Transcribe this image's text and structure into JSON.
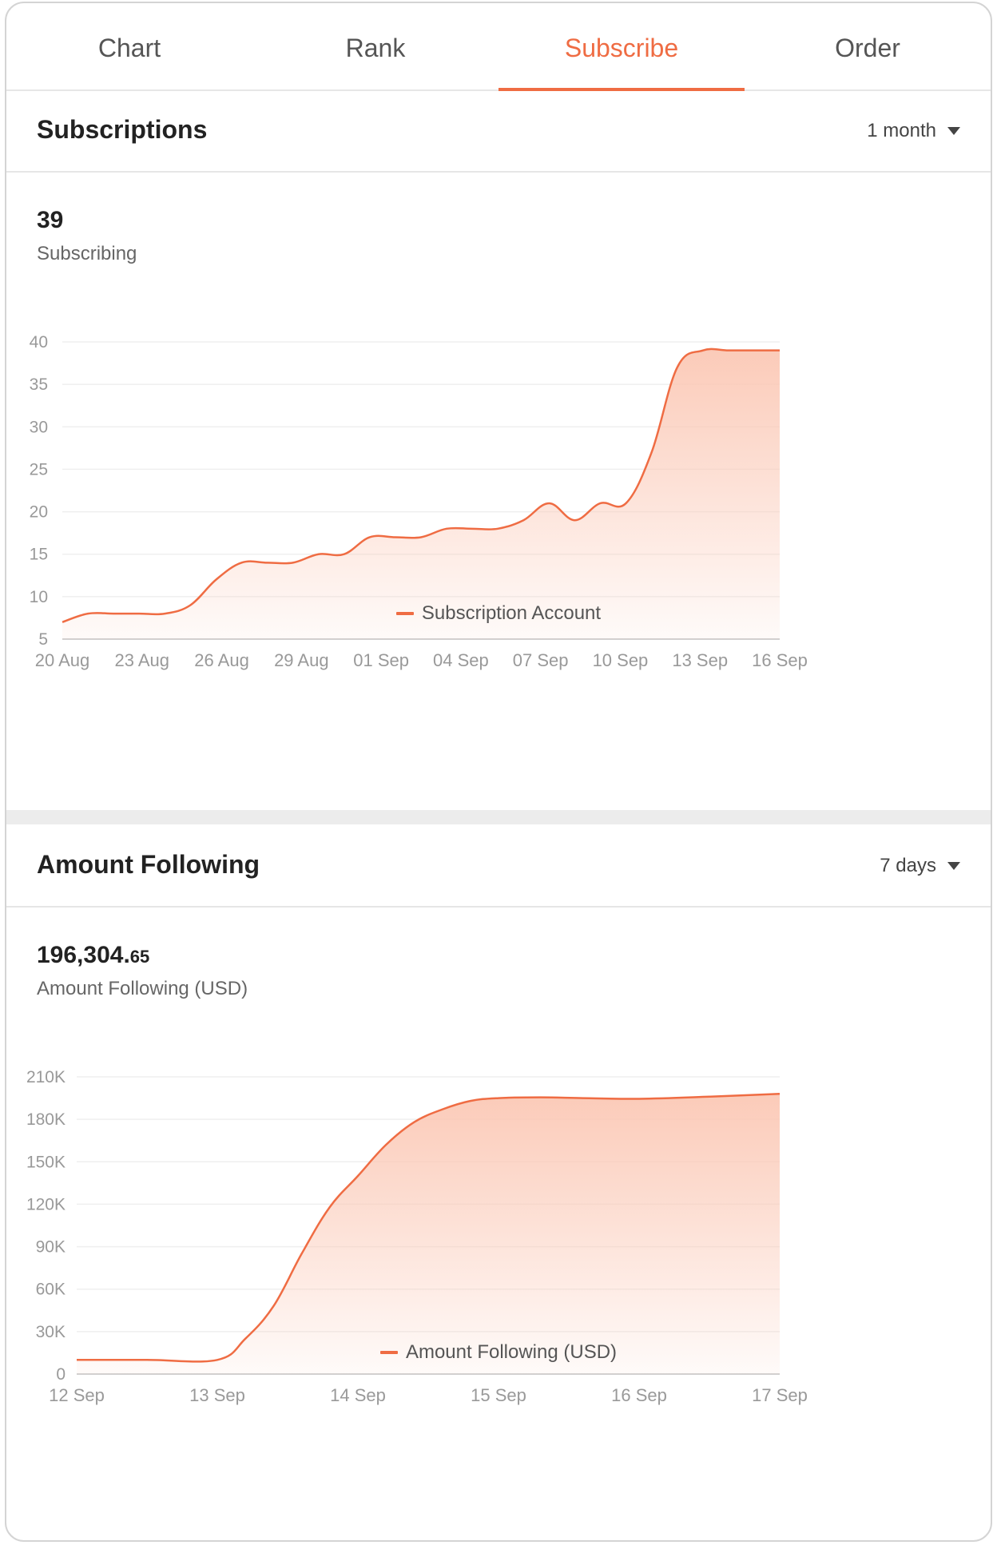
{
  "tabs": [
    {
      "label": "Chart",
      "active": false
    },
    {
      "label": "Rank",
      "active": false
    },
    {
      "label": "Subscribe",
      "active": true
    },
    {
      "label": "Order",
      "active": false
    }
  ],
  "colors": {
    "accent": "#ef6c43",
    "fill": "#fbc8b5",
    "grid": "#efefef",
    "axis": "#999999"
  },
  "subscriptions": {
    "title": "Subscriptions",
    "range": "1 month",
    "value": "39",
    "value_label": "Subscribing",
    "legend": "Subscription Account"
  },
  "amount": {
    "title": "Amount Following",
    "range": "7 days",
    "value_int": "196,304.",
    "value_dec": "65",
    "value_label": "Amount Following (USD)",
    "legend": "Amount Following (USD)"
  },
  "chart_data": [
    {
      "type": "area",
      "series": [
        {
          "name": "Subscription Account"
        }
      ],
      "ylim": [
        5,
        40
      ],
      "yticks": [
        "40",
        "35",
        "30",
        "25",
        "20",
        "15",
        "10",
        "5"
      ],
      "ytick_values": [
        40,
        35,
        30,
        25,
        20,
        15,
        10,
        5
      ],
      "xticks": [
        "20 Aug",
        "23 Aug",
        "26 Aug",
        "29 Aug",
        "01 Sep",
        "04 Sep",
        "07 Sep",
        "10 Sep",
        "13 Sep",
        "16 Sep"
      ],
      "x": [
        0,
        1,
        2,
        3,
        4,
        5,
        6,
        7,
        8,
        9,
        10,
        11,
        12,
        13,
        14,
        15,
        16,
        17,
        18,
        19,
        20,
        21,
        22,
        23,
        24,
        25,
        26,
        27,
        28
      ],
      "values": [
        7,
        8,
        8,
        8,
        8,
        9,
        12,
        14,
        14,
        14,
        15,
        15,
        17,
        17,
        17,
        18,
        18,
        18,
        19,
        21,
        19,
        21,
        21,
        27,
        37,
        39,
        39,
        39,
        39
      ],
      "grid": true,
      "legend": "bottom-center"
    },
    {
      "type": "area",
      "series": [
        {
          "name": "Amount Following (USD)"
        }
      ],
      "ylim": [
        0,
        210000
      ],
      "yticks": [
        "210K",
        "180K",
        "150K",
        "120K",
        "90K",
        "60K",
        "30K",
        "0"
      ],
      "ytick_values": [
        210000,
        180000,
        150000,
        120000,
        90000,
        60000,
        30000,
        0
      ],
      "xticks": [
        "12 Sep",
        "13 Sep",
        "14 Sep",
        "15 Sep",
        "16 Sep",
        "17 Sep"
      ],
      "x": [
        0,
        0.5,
        1.0,
        1.2,
        1.4,
        1.6,
        1.8,
        2.0,
        2.2,
        2.4,
        2.6,
        2.8,
        3.0,
        3.3,
        3.6,
        4.0,
        4.5,
        5.0
      ],
      "values": [
        10000,
        10000,
        10000,
        25000,
        48000,
        85000,
        118000,
        140000,
        162000,
        178000,
        187000,
        193000,
        195000,
        195500,
        195000,
        194500,
        196000,
        198000
      ],
      "grid": true,
      "legend": "bottom-center"
    }
  ]
}
